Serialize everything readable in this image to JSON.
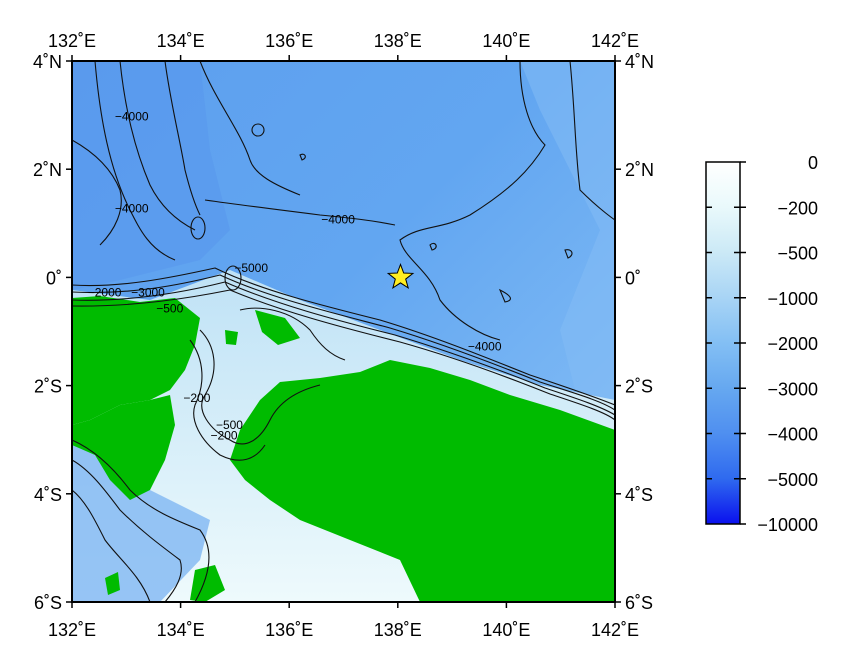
{
  "map": {
    "lon_ticks": [
      {
        "value": 132,
        "label": "132˚E"
      },
      {
        "value": 134,
        "label": "134˚E"
      },
      {
        "value": 136,
        "label": "136˚E"
      },
      {
        "value": 138,
        "label": "138˚E"
      },
      {
        "value": 140,
        "label": "140˚E"
      },
      {
        "value": 142,
        "label": "142˚E"
      }
    ],
    "lat_ticks": [
      {
        "value": 4,
        "label": "4˚N"
      },
      {
        "value": 2,
        "label": "2˚N"
      },
      {
        "value": 0,
        "label": "0˚"
      },
      {
        "value": -2,
        "label": "2˚S"
      },
      {
        "value": -4,
        "label": "4˚S"
      },
      {
        "value": -6,
        "label": "6˚S"
      }
    ],
    "lon_range": [
      132,
      142
    ],
    "lat_range": [
      -6,
      4
    ],
    "land_color": "#00bb00",
    "epicenter": {
      "lon": 138.05,
      "lat": 0.0,
      "icon": "star-icon",
      "color": "#ffee22"
    },
    "contour_labels": [
      {
        "text": "−4000",
        "lon": 133.1,
        "lat": 2.9
      },
      {
        "text": "−4000",
        "lon": 133.1,
        "lat": 1.2
      },
      {
        "text": "−4000",
        "lon": 136.9,
        "lat": 1.0
      },
      {
        "text": "−5000",
        "lon": 135.3,
        "lat": 0.1
      },
      {
        "text": "−2000",
        "lon": 132.6,
        "lat": -0.35
      },
      {
        "text": "−3000",
        "lon": 133.4,
        "lat": -0.35
      },
      {
        "text": "−500",
        "lon": 133.8,
        "lat": -0.65
      },
      {
        "text": "−4000",
        "lon": 139.6,
        "lat": -1.35
      },
      {
        "text": "−200",
        "lon": 134.3,
        "lat": -2.3
      },
      {
        "text": "−500",
        "lon": 134.9,
        "lat": -2.8
      },
      {
        "text": "−200",
        "lon": 134.8,
        "lat": -3.0
      }
    ]
  },
  "colorbar": {
    "colormap": [
      "#ffffff",
      "#e9f9fb",
      "#cbe9f6",
      "#a8d4f5",
      "#83bff4",
      "#66a8f0",
      "#4f8ff0",
      "#2f6aef",
      "#0a10ee"
    ],
    "ticks": [
      {
        "value": "0",
        "label": "0"
      },
      {
        "value": "-200",
        "label": "−200"
      },
      {
        "value": "-500",
        "label": "−500"
      },
      {
        "value": "-1000",
        "label": "−1000"
      },
      {
        "value": "-2000",
        "label": "−2000"
      },
      {
        "value": "-3000",
        "label": "−3000"
      },
      {
        "value": "-4000",
        "label": "−4000"
      },
      {
        "value": "-5000",
        "label": "−5000"
      },
      {
        "value": "-10000",
        "label": "−10000"
      }
    ]
  }
}
